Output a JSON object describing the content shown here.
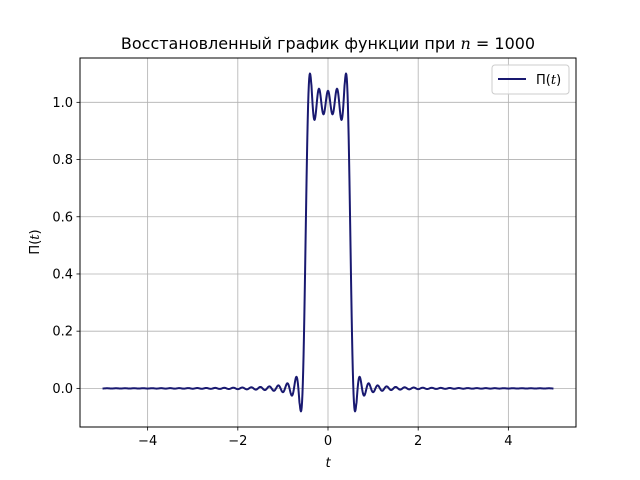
{
  "chart_data": {
    "type": "line",
    "title_text": "Восстановленный график функции при ",
    "title_math_var": "n",
    "title_math_rest": " = 1000",
    "xlabel": "t",
    "ylabel_prefix": "Π(",
    "ylabel_var": "t",
    "ylabel_suffix": ")",
    "xlim": [
      -5.5,
      5.5
    ],
    "ylim": [
      -0.135,
      1.155
    ],
    "xticks": [
      -4,
      -2,
      0,
      2,
      4
    ],
    "xtick_labels": [
      "−4",
      "−2",
      "0",
      "2",
      "4"
    ],
    "yticks": [
      0.0,
      0.2,
      0.4,
      0.6,
      0.8,
      1.0
    ],
    "ytick_labels": [
      "0.0",
      "0.2",
      "0.4",
      "0.6",
      "0.8",
      "1.0"
    ],
    "grid": true,
    "legend_position": "top-right",
    "series": [
      {
        "name_prefix": "Π(",
        "name_var": "t",
        "name_suffix": ")",
        "color": "#191970",
        "x_range": [
          -5,
          5
        ],
        "function": "sum_{k=1..5} (4/pi)*(-1)^(k+1)/(2k-1) * cos(2*pi*(2k-1)*t/2.1) windowed as sinc-filtered rect of width 1",
        "x": [
          -5,
          -4,
          -3,
          -2,
          -1.5,
          -1,
          -0.8,
          -0.7,
          -0.6,
          -0.5,
          -0.45,
          -0.4,
          -0.3,
          -0.2,
          -0.1,
          0,
          0.1,
          0.2,
          0.3,
          0.4,
          0.45,
          0.5,
          0.6,
          0.7,
          0.8,
          1,
          1.5,
          2,
          3,
          4,
          5
        ],
        "y": [
          0.0,
          0.0,
          0.0,
          0.0,
          0.0,
          0.0,
          0.0,
          0.04,
          -0.08,
          0.5,
          1.05,
          1.1,
          0.94,
          1.05,
          0.94,
          1.04,
          0.94,
          1.05,
          0.94,
          1.1,
          1.05,
          0.5,
          -0.08,
          0.04,
          0.0,
          0.0,
          0.0,
          0.0,
          0.0,
          0.0,
          0.0
        ]
      }
    ]
  }
}
